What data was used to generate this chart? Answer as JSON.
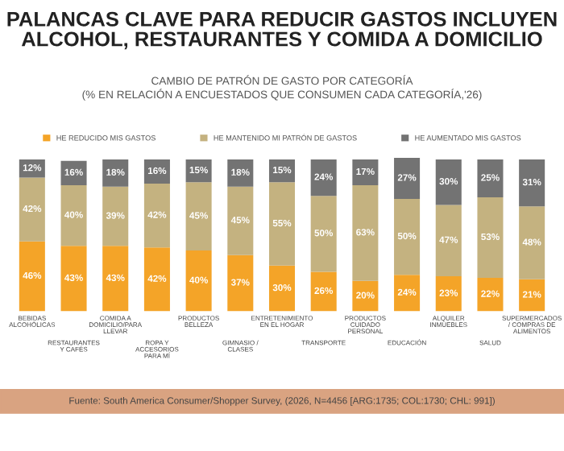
{
  "chart_data": {
    "type": "bar",
    "stacked": true,
    "title": "PALANCAS CLAVE PARA REDUCIR GASTOS INCLUYEN\nALCOHOL, RESTAURANTES Y COMIDA A DOMICILIO",
    "subtitle": "CAMBIO DE PATRÓN DE GASTO POR CATEGORÍA\n(% EN RELACIÓN A ENCUESTADOS QUE CONSUMEN CADA CATEGORÍA,'26)",
    "categories": [
      "BEBIDAS\nALCOHÓLICAS",
      "RESTAURANTES\nY CAFÉS",
      "COMIDA A\nDOMICILIO/PARA\nLLEVAR",
      "ROPA Y\nACCESORIOS\nPARA MÍ",
      "PRODUCTOS\nBELLEZA",
      "GIMNASIO /\nCLASES",
      "ENTRETENIMIENTO\nEN EL HOGAR",
      "TRANSPORTE",
      "PRODUCTOS\nCUIDADO\nPERSONAL",
      "EDUCACIÓN",
      "ALQUILER\nINMUEBLES",
      "SALUD",
      "SUPERMERCADOS\n/ COMPRAS DE\nALIMENTOS"
    ],
    "series": [
      {
        "name": "HE REDUCIDO MIS GASTOS",
        "color": "#f4a428",
        "values": [
          46,
          43,
          43,
          42,
          40,
          37,
          30,
          26,
          20,
          24,
          23,
          22,
          21
        ],
        "value_labels": [
          "46%",
          "43%",
          "43%",
          "42%",
          "40%",
          "37%",
          "30%",
          "26%",
          "20%",
          "24%",
          "23%",
          "22%",
          "21%"
        ]
      },
      {
        "name": "HE MANTENIDO MI PATRÓN DE GASTOS",
        "color": "#c4b280",
        "values": [
          42,
          40,
          39,
          42,
          45,
          45,
          55,
          50,
          63,
          50,
          47,
          53,
          48
        ],
        "value_labels": [
          "42%",
          "40%",
          "39%",
          "42%",
          "45%",
          "45%",
          "55%",
          "50%",
          "63%",
          "50%",
          "47%",
          "53%",
          "48%"
        ]
      },
      {
        "name": "HE AUMENTADO MIS GASTOS",
        "color": "#737373",
        "values": [
          12,
          16,
          18,
          16,
          15,
          18,
          15,
          24,
          17,
          27,
          30,
          25,
          31
        ],
        "value_labels": [
          "12%",
          "16%",
          "18%",
          "16%",
          "15%",
          "18%",
          "15%",
          "24%",
          "17%",
          "27%",
          "30%",
          "25%",
          "31%"
        ]
      }
    ],
    "legend": "top",
    "tick_labels": "x",
    "grid": false,
    "annotations": [
      "Fuente: South America Consumer/Shopper Survey, (2026, N=4456 [ARG:1735; COL:1730; CHL: 991])"
    ]
  }
}
